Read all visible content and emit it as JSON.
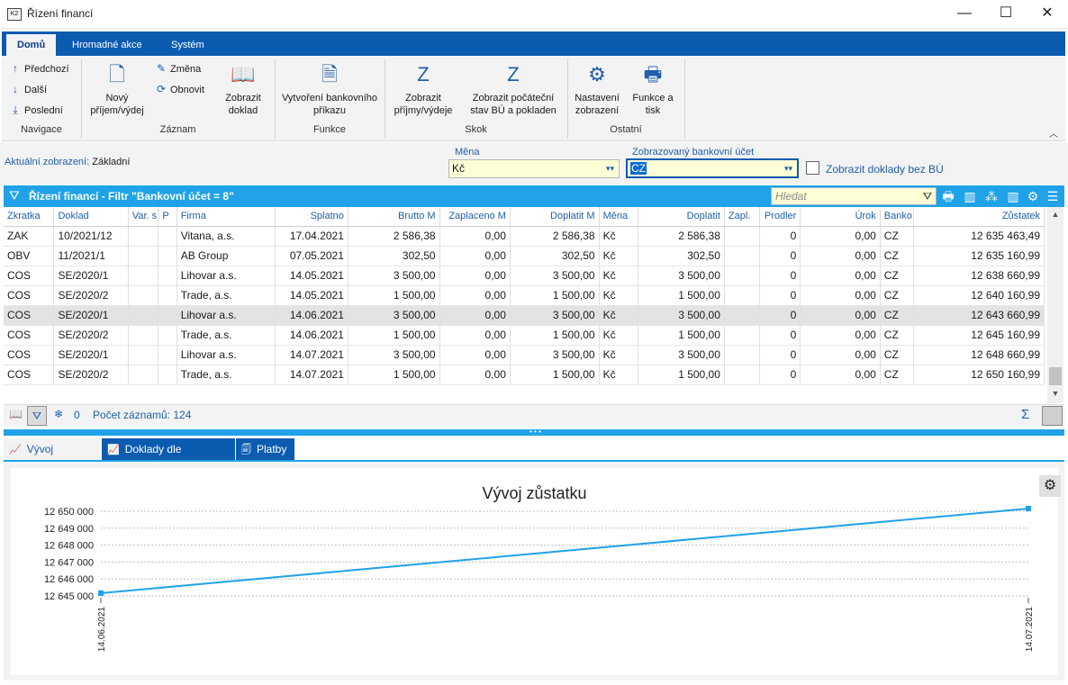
{
  "window": {
    "title": "Řízení financí",
    "minimize": "—",
    "maximize": "☐",
    "close": "✕"
  },
  "ribbon": {
    "tabs": [
      "Domů",
      "Hromadné akce",
      "Systém"
    ],
    "navigace": {
      "prev": "Předchozí",
      "next": "Další",
      "last": "Poslední",
      "label": "Navigace"
    },
    "zaznam": {
      "new": "Nový příjem/výdej",
      "change": "Změna",
      "refresh": "Obnovit",
      "show": "Zobrazit doklad",
      "label": "Záznam"
    },
    "funkce": {
      "create": "Vytvoření bankovního příkazu",
      "label": "Funkce"
    },
    "skok": {
      "show_income": "Zobrazit příjmy/výdeje",
      "show_initial": "Zobrazit počáteční stav BÚ a pokladen",
      "label": "Skok"
    },
    "ostatni": {
      "settings": "Nastavení zobrazení",
      "print": "Funkce a tisk",
      "label": "Ostatní"
    }
  },
  "filters": {
    "current_view_label": "Aktuální zobrazení:",
    "current_view_value": "Základní",
    "currency_label": "Měna",
    "currency_value": "Kč",
    "account_label": "Zobrazovaný bankovní účet",
    "account_value": "CZ",
    "no_account_label": "Zobrazit doklady bez BÚ"
  },
  "grid": {
    "title": "Řízení financí - Filtr \"Bankovní účet = 8\"",
    "search_placeholder": "Hledat",
    "columns": [
      "Zkratka",
      "Doklad",
      "Var. s",
      "P",
      "Firma",
      "Splatno",
      "Brutto M",
      "Zaplaceno M",
      "Doplatit M",
      "Měna",
      "Doplatit",
      "Zapl.",
      "Prodler",
      "Úrok",
      "Banko",
      "Zůstatek"
    ],
    "rows": [
      [
        "ZAK",
        "10/2021/12",
        "",
        "",
        "Vitana, a.s.",
        "17.04.2021",
        "2 586,38",
        "0,00",
        "2 586,38",
        "Kč",
        "2 586,38",
        "",
        "0",
        "0,00",
        "CZ",
        "12 635 463,49"
      ],
      [
        "OBV",
        "11/2021/1",
        "",
        "",
        "AB Group",
        "07.05.2021",
        "302,50",
        "0,00",
        "302,50",
        "Kč",
        "302,50",
        "",
        "0",
        "0,00",
        "CZ",
        "12 635 160,99"
      ],
      [
        "COS",
        "SE/2020/1",
        "",
        "",
        "Lihovar a.s.",
        "14.05.2021",
        "3 500,00",
        "0,00",
        "3 500,00",
        "Kč",
        "3 500,00",
        "",
        "0",
        "0,00",
        "CZ",
        "12 638 660,99"
      ],
      [
        "COS",
        "SE/2020/2",
        "",
        "",
        "Trade, a.s.",
        "14.05.2021",
        "1 500,00",
        "0,00",
        "1 500,00",
        "Kč",
        "1 500,00",
        "",
        "0",
        "0,00",
        "CZ",
        "12 640 160,99"
      ],
      [
        "COS",
        "SE/2020/1",
        "",
        "",
        "Lihovar a.s.",
        "14.06.2021",
        "3 500,00",
        "0,00",
        "3 500,00",
        "Kč",
        "3 500,00",
        "",
        "0",
        "0,00",
        "CZ",
        "12 643 660,99"
      ],
      [
        "COS",
        "SE/2020/2",
        "",
        "",
        "Trade, a.s.",
        "14.06.2021",
        "1 500,00",
        "0,00",
        "1 500,00",
        "Kč",
        "1 500,00",
        "",
        "0",
        "0,00",
        "CZ",
        "12 645 160,99"
      ],
      [
        "COS",
        "SE/2020/1",
        "",
        "",
        "Lihovar a.s.",
        "14.07.2021",
        "3 500,00",
        "0,00",
        "3 500,00",
        "Kč",
        "3 500,00",
        "",
        "0",
        "0,00",
        "CZ",
        "12 648 660,99"
      ],
      [
        "COS",
        "SE/2020/2",
        "",
        "",
        "Trade, a.s.",
        "14.07.2021",
        "1 500,00",
        "0,00",
        "1 500,00",
        "Kč",
        "1 500,00",
        "",
        "0",
        "0,00",
        "CZ",
        "12 650 160,99"
      ]
    ],
    "highlighted_row": 4
  },
  "statusbar": {
    "filter_count": "0",
    "record_count": "Počet záznamů: 124"
  },
  "bottom_tabs": [
    "Vývoj zůstatku",
    "Doklady dle splatnosti",
    "Platby"
  ],
  "chart_data": {
    "type": "line",
    "title": "Vývoj zůstatku",
    "x": [
      "14.06.2021",
      "14.07.2021"
    ],
    "series": [
      {
        "values": [
          12645160.99,
          12650160.99
        ]
      }
    ],
    "ylim": [
      12645000,
      12650000
    ],
    "yticks": [
      "12 645 000",
      "12 646 000",
      "12 647 000",
      "12 648 000",
      "12 649 000",
      "12 650 000"
    ],
    "grid": true,
    "color": "#1fa2e8"
  }
}
